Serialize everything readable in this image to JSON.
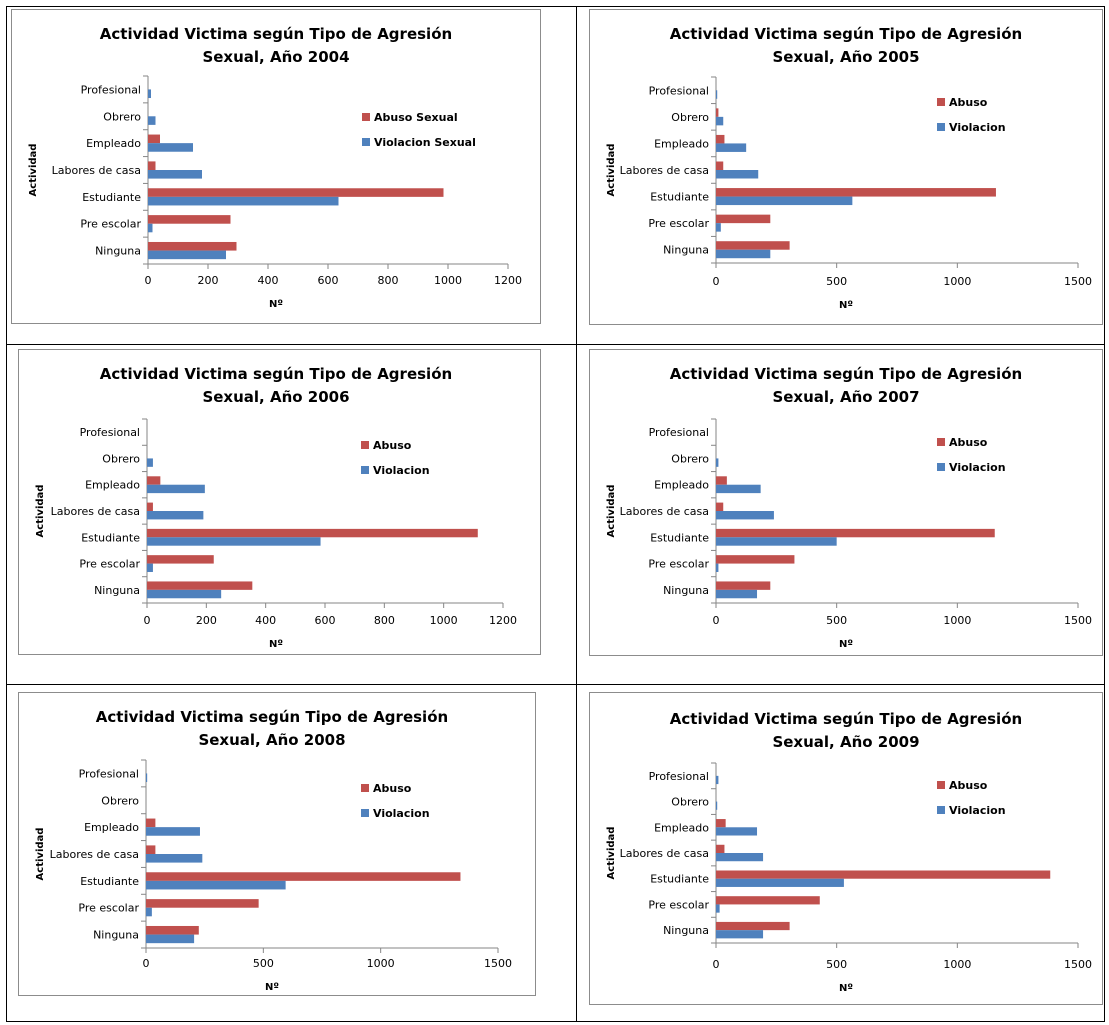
{
  "colors": {
    "abuso": "#c0504d",
    "violacion": "#4f81bd"
  },
  "chart_data": [
    {
      "type": "bar",
      "orientation": "horizontal",
      "title": [
        "Actividad Victima según Tipo de Agresión",
        "Sexual, Año 2004"
      ],
      "xlabel": "Nº",
      "ylabel": "Actividad",
      "categories": [
        "Profesional",
        "Obrero",
        "Empleado",
        "Labores de casa",
        "Estudiante",
        "Pre escolar",
        "Ninguna"
      ],
      "xlim": [
        0,
        1200
      ],
      "xticks": [
        0,
        200,
        400,
        600,
        800,
        1000,
        1200
      ],
      "legend_position": "right",
      "series": [
        {
          "name": "Abuso Sexual",
          "color": "#c0504d",
          "values": [
            0,
            0,
            40,
            25,
            985,
            275,
            295
          ]
        },
        {
          "name": "Violacion Sexual",
          "color": "#4f81bd",
          "values": [
            10,
            25,
            150,
            180,
            635,
            15,
            260
          ]
        }
      ]
    },
    {
      "type": "bar",
      "orientation": "horizontal",
      "title": [
        "Actividad Victima según Tipo de Agresión",
        "Sexual, Año 2005"
      ],
      "xlabel": "Nº",
      "ylabel": "Actividad",
      "categories": [
        "Profesional",
        "Obrero",
        "Empleado",
        "Labores de casa",
        "Estudiante",
        "Pre escolar",
        "Ninguna"
      ],
      "xlim": [
        0,
        1500
      ],
      "xticks": [
        0,
        500,
        1000,
        1500
      ],
      "legend_position": "right",
      "series": [
        {
          "name": "Abuso",
          "color": "#c0504d",
          "values": [
            0,
            10,
            35,
            30,
            1160,
            225,
            305
          ]
        },
        {
          "name": "Violacion",
          "color": "#4f81bd",
          "values": [
            5,
            30,
            125,
            175,
            565,
            20,
            225
          ]
        }
      ]
    },
    {
      "type": "bar",
      "orientation": "horizontal",
      "title": [
        "Actividad Victima según Tipo de Agresión",
        "Sexual, Año 2006"
      ],
      "xlabel": "Nº",
      "ylabel": "Actividad",
      "categories": [
        "Profesional",
        "Obrero",
        "Empleado",
        "Labores de casa",
        "Estudiante",
        "Pre escolar",
        "Ninguna"
      ],
      "xlim": [
        0,
        1200
      ],
      "xticks": [
        0,
        200,
        400,
        600,
        800,
        1000,
        1200
      ],
      "legend_position": "right",
      "series": [
        {
          "name": "Abuso",
          "color": "#c0504d",
          "values": [
            0,
            0,
            45,
            20,
            1115,
            225,
            355
          ]
        },
        {
          "name": "Violacion",
          "color": "#4f81bd",
          "values": [
            0,
            20,
            195,
            190,
            585,
            20,
            250
          ]
        }
      ]
    },
    {
      "type": "bar",
      "orientation": "horizontal",
      "title": [
        "Actividad Victima según Tipo de Agresión",
        "Sexual, Año 2007"
      ],
      "xlabel": "Nº",
      "ylabel": "Actividad",
      "categories": [
        "Profesional",
        "Obrero",
        "Empleado",
        "Labores de casa",
        "Estudiante",
        "Pre escolar",
        "Ninguna"
      ],
      "xlim": [
        0,
        1500
      ],
      "xticks": [
        0,
        500,
        1000,
        1500
      ],
      "legend_position": "right",
      "series": [
        {
          "name": "Abuso",
          "color": "#c0504d",
          "values": [
            0,
            0,
            45,
            30,
            1155,
            325,
            225
          ]
        },
        {
          "name": "Violacion",
          "color": "#4f81bd",
          "values": [
            0,
            10,
            185,
            240,
            500,
            10,
            170
          ]
        }
      ]
    },
    {
      "type": "bar",
      "orientation": "horizontal",
      "title": [
        "Actividad Victima según Tipo de Agresión",
        "Sexual, Año 2008"
      ],
      "xlabel": "Nº",
      "ylabel": "Actividad",
      "categories": [
        "Profesional",
        "Obrero",
        "Empleado",
        "Labores de casa",
        "Estudiante",
        "Pre escolar",
        "Ninguna"
      ],
      "xlim": [
        0,
        1500
      ],
      "xticks": [
        0,
        500,
        1000,
        1500
      ],
      "legend_position": "right",
      "series": [
        {
          "name": "Abuso",
          "color": "#c0504d",
          "values": [
            0,
            0,
            40,
            40,
            1340,
            480,
            225
          ]
        },
        {
          "name": "Violacion",
          "color": "#4f81bd",
          "values": [
            5,
            0,
            230,
            240,
            595,
            25,
            205
          ]
        }
      ]
    },
    {
      "type": "bar",
      "orientation": "horizontal",
      "title": [
        "Actividad Victima según Tipo de Agresión",
        "Sexual, Año 2009"
      ],
      "xlabel": "Nº",
      "ylabel": "Actividad",
      "categories": [
        "Profesional",
        "Obrero",
        "Empleado",
        "Labores de casa",
        "Estudiante",
        "Pre escolar",
        "Ninguna"
      ],
      "xlim": [
        0,
        1500
      ],
      "xticks": [
        0,
        500,
        1000,
        1500
      ],
      "legend_position": "right",
      "series": [
        {
          "name": "Abuso",
          "color": "#c0504d",
          "values": [
            0,
            0,
            40,
            35,
            1385,
            430,
            305
          ]
        },
        {
          "name": "Violacion",
          "color": "#4f81bd",
          "values": [
            10,
            5,
            170,
            195,
            530,
            15,
            195
          ]
        }
      ]
    }
  ]
}
